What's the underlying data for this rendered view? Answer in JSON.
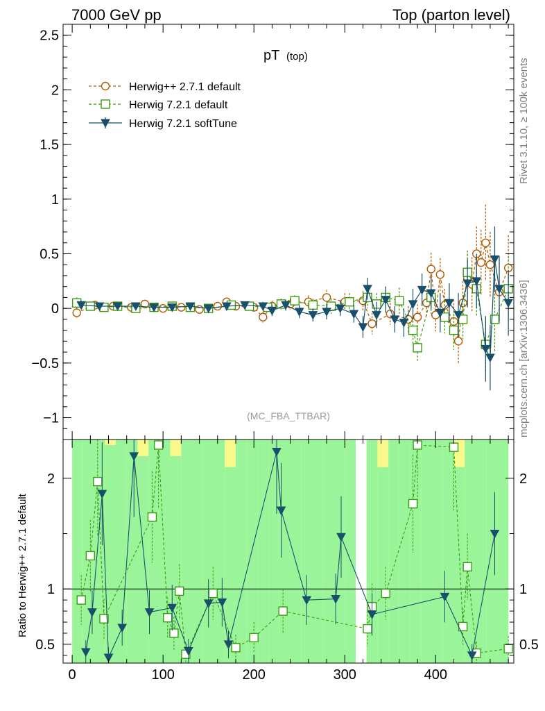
{
  "header": {
    "left": "7000 GeV pp",
    "right": "Top (parton level)"
  },
  "side_labels": {
    "rivet": "Rivet 3.1.10, ≥ 100k events",
    "mcplots": "mcplots.cern.ch [arXiv:1306.3436]"
  },
  "chart_data": {
    "type": "scatter",
    "title_main": "pT",
    "title_sub": "(top)",
    "watermark": "(MC_FBA_TTBAR)",
    "ylabel_ratio": "Ratio to Herwig++ 2.7.1 default",
    "xlim": [
      -10,
      486
    ],
    "ylim": [
      -1.2,
      2.6
    ],
    "ratio_ylim": [
      0.33,
      2.35
    ],
    "x_ticks": [
      0,
      100,
      200,
      300,
      400
    ],
    "y_ticks": [
      -1,
      -0.5,
      0,
      0.5,
      1,
      1.5,
      2,
      2.5
    ],
    "y_tick_labels": [
      "−1",
      "−0.5",
      "0",
      "0.5",
      "1",
      "1.5",
      "2",
      "2.5"
    ],
    "ratio_ticks": [
      0.5,
      1,
      2
    ],
    "ratio_tick_labels": [
      "0.5",
      "1",
      "2"
    ],
    "ratio_reference": 1,
    "legend_position": "top-left",
    "colors": {
      "herwigpp": "#b35a00",
      "herwig721": "#3d9b0f",
      "softtune": "#184f6a",
      "band_inner": "#9af59a",
      "band_outer": "#fafa8c"
    },
    "series": [
      {
        "name": "Herwig++ 2.7.1 default",
        "marker": "open-circle",
        "style": "dashed",
        "x": [
          5,
          25,
          45,
          65,
          80,
          100,
          120,
          140,
          160,
          170,
          180,
          200,
          210,
          220,
          240,
          260,
          280,
          300,
          320,
          330,
          350,
          370,
          380,
          390,
          395,
          400,
          405,
          410,
          420,
          425,
          430,
          435,
          440,
          445,
          450,
          455,
          460,
          470,
          480
        ],
        "y": [
          -0.04,
          0.03,
          0.02,
          0.01,
          0.04,
          0.0,
          0.01,
          -0.01,
          0.02,
          0.06,
          0.02,
          0.01,
          -0.08,
          0.02,
          0.04,
          0.06,
          0.1,
          0.06,
          0.07,
          -0.14,
          -0.05,
          -0.1,
          -0.08,
          0.05,
          0.36,
          -0.06,
          0.31,
          0.03,
          -0.12,
          -0.3,
          0.05,
          0.28,
          0.22,
          0.5,
          0.42,
          0.6,
          0.4,
          0.15,
          0.37
        ],
        "yerr": [
          0.05,
          0.03,
          0.03,
          0.03,
          0.03,
          0.03,
          0.03,
          0.03,
          0.03,
          0.03,
          0.03,
          0.03,
          0.05,
          0.05,
          0.05,
          0.06,
          0.07,
          0.08,
          0.09,
          0.1,
          0.1,
          0.12,
          0.12,
          0.12,
          0.15,
          0.15,
          0.15,
          0.15,
          0.2,
          0.2,
          0.2,
          0.22,
          0.25,
          0.25,
          0.3,
          0.35,
          0.3,
          0.3,
          0.3
        ]
      },
      {
        "name": "Herwig 7.2.1 default",
        "marker": "open-square",
        "style": "dashed",
        "x": [
          5,
          20,
          35,
          50,
          70,
          90,
          110,
          130,
          150,
          175,
          195,
          215,
          230,
          245,
          265,
          285,
          305,
          325,
          335,
          345,
          360,
          375,
          380,
          395,
          410,
          420,
          430,
          435,
          445,
          455,
          465,
          480
        ],
        "y": [
          0.05,
          0.02,
          0.01,
          0.02,
          0.0,
          0.01,
          0.02,
          0.01,
          0.0,
          0.03,
          0.02,
          0.01,
          0.04,
          0.07,
          0.03,
          0.02,
          0.06,
          0.1,
          0.04,
          0.1,
          0.07,
          -0.2,
          -0.36,
          0.1,
          -0.08,
          -0.2,
          -0.1,
          0.33,
          0.18,
          -0.33,
          -0.1,
          0.18
        ],
        "yerr": [
          0.05,
          0.03,
          0.03,
          0.03,
          0.03,
          0.03,
          0.03,
          0.03,
          0.03,
          0.03,
          0.03,
          0.04,
          0.05,
          0.05,
          0.06,
          0.07,
          0.08,
          0.1,
          0.1,
          0.1,
          0.12,
          0.12,
          0.12,
          0.15,
          0.15,
          0.18,
          0.18,
          0.2,
          0.25,
          0.25,
          0.3,
          0.3
        ]
      },
      {
        "name": "Herwig 7.2.1 softTune",
        "marker": "filled-triangle-down",
        "style": "solid",
        "x": [
          10,
          30,
          50,
          70,
          90,
          110,
          130,
          150,
          170,
          190,
          210,
          220,
          235,
          250,
          265,
          280,
          295,
          310,
          320,
          325,
          335,
          345,
          355,
          365,
          375,
          385,
          395,
          405,
          415,
          425,
          435,
          445,
          455,
          460,
          465,
          470,
          480
        ],
        "y": [
          0.03,
          0.02,
          0.02,
          0.02,
          0.01,
          0.01,
          0.02,
          0.0,
          0.02,
          0.03,
          0.02,
          -0.02,
          0.03,
          -0.03,
          -0.06,
          -0.03,
          0.0,
          -0.05,
          -0.17,
          0.18,
          -0.06,
          0.08,
          -0.1,
          -0.13,
          0.04,
          0.17,
          0.14,
          -0.04,
          0.05,
          -0.06,
          0.23,
          0.25,
          -0.37,
          -0.45,
          0.45,
          0.18,
          0.05
        ],
        "yerr": [
          0.04,
          0.03,
          0.03,
          0.03,
          0.03,
          0.03,
          0.03,
          0.03,
          0.03,
          0.03,
          0.04,
          0.05,
          0.05,
          0.06,
          0.06,
          0.07,
          0.07,
          0.08,
          0.1,
          0.1,
          0.12,
          0.12,
          0.12,
          0.13,
          0.14,
          0.15,
          0.15,
          0.18,
          0.18,
          0.2,
          0.22,
          0.25,
          0.3,
          0.3,
          0.3,
          0.3,
          0.3
        ]
      }
    ],
    "ratio_series": [
      {
        "name": "Herwig 7.2.1 default",
        "x": [
          10,
          20,
          28,
          35,
          88,
          95,
          105,
          112,
          118,
          125,
          155,
          180,
          200,
          232,
          325,
          330,
          345,
          375,
          380,
          420,
          430,
          435,
          445,
          480
        ],
        "y": [
          0.9,
          1.3,
          1.97,
          0.73,
          1.65,
          2.3,
          0.74,
          0.6,
          0.98,
          0.41,
          0.96,
          0.47,
          0.56,
          0.8,
          0.64,
          0.84,
          0.96,
          1.77,
          2.3,
          2.28,
          0.66,
          1.2,
          0.42,
          0.46
        ]
      },
      {
        "name": "Herwig 7.2.1 softTune",
        "x": [
          15,
          22,
          33,
          40,
          55,
          68,
          85,
          110,
          128,
          150,
          165,
          172,
          225,
          230,
          258,
          290,
          296,
          330,
          410,
          440,
          465
        ],
        "y": [
          0.43,
          0.79,
          1.86,
          0.38,
          0.65,
          2.2,
          0.79,
          0.83,
          0.44,
          0.87,
          0.88,
          0.5,
          2.24,
          1.71,
          0.9,
          0.91,
          1.47,
          0.77,
          0.93,
          0.4,
          1.5
        ]
      }
    ],
    "uncertainty_band": {
      "x_edges": [
        0,
        12,
        24,
        36,
        48,
        60,
        72,
        84,
        96,
        108,
        120,
        132,
        144,
        156,
        168,
        180,
        192,
        204,
        216,
        228,
        240,
        252,
        264,
        276,
        288,
        300,
        312,
        324,
        336,
        348,
        360,
        372,
        384,
        396,
        408,
        420,
        432,
        444,
        456,
        468,
        480
      ],
      "inner": [
        [
          0.33,
          2.35
        ],
        [
          0.33,
          2.35
        ],
        [
          0.33,
          2.35
        ],
        [
          0.33,
          2.3
        ],
        [
          0.33,
          2.35
        ],
        [
          0.33,
          2.35
        ],
        [
          0.33,
          2.2
        ],
        [
          0.33,
          2.35
        ],
        [
          0.33,
          2.35
        ],
        [
          0.33,
          2.2
        ],
        [
          0.33,
          2.35
        ],
        [
          0.33,
          2.35
        ],
        [
          0.33,
          2.35
        ],
        [
          0.33,
          2.35
        ],
        [
          0.33,
          2.1
        ],
        [
          0.33,
          2.35
        ],
        [
          0.33,
          2.35
        ],
        [
          0.33,
          2.35
        ],
        [
          0.33,
          2.35
        ],
        [
          0.33,
          2.35
        ],
        [
          0.33,
          2.35
        ],
        [
          0.33,
          2.35
        ],
        [
          0.33,
          2.35
        ],
        [
          0.33,
          2.35
        ],
        [
          0.33,
          2.35
        ],
        [
          0.33,
          2.35
        ],
        [
          0.33,
          0.33
        ],
        [
          0.33,
          2.35
        ],
        [
          0.33,
          2.1
        ],
        [
          0.33,
          2.35
        ],
        [
          0.33,
          2.35
        ],
        [
          0.33,
          2.35
        ],
        [
          0.33,
          2.35
        ],
        [
          0.33,
          2.35
        ],
        [
          0.33,
          2.35
        ],
        [
          0.33,
          2.1
        ],
        [
          0.33,
          2.35
        ],
        [
          0.33,
          2.35
        ],
        [
          0.33,
          2.35
        ],
        [
          0.33,
          2.35
        ]
      ],
      "outer": [
        [
          0.33,
          2.35
        ],
        [
          0.33,
          2.35
        ],
        [
          0.33,
          2.35
        ],
        [
          0.33,
          2.35
        ],
        [
          0.33,
          2.35
        ],
        [
          0.33,
          2.35
        ],
        [
          0.33,
          2.35
        ],
        [
          0.33,
          2.35
        ],
        [
          0.33,
          2.35
        ],
        [
          0.33,
          2.35
        ],
        [
          0.33,
          2.35
        ],
        [
          0.33,
          2.35
        ],
        [
          0.33,
          2.35
        ],
        [
          0.33,
          2.35
        ],
        [
          0.33,
          2.35
        ],
        [
          0.33,
          2.35
        ],
        [
          0.33,
          2.35
        ],
        [
          0.33,
          2.35
        ],
        [
          0.33,
          2.35
        ],
        [
          0.33,
          2.35
        ],
        [
          0.33,
          2.35
        ],
        [
          0.33,
          2.35
        ],
        [
          0.33,
          2.35
        ],
        [
          0.33,
          2.35
        ],
        [
          0.33,
          2.35
        ],
        [
          0.33,
          2.35
        ],
        [
          0.33,
          0.33
        ],
        [
          0.33,
          2.35
        ],
        [
          0.33,
          2.35
        ],
        [
          0.33,
          2.35
        ],
        [
          0.33,
          2.35
        ],
        [
          0.33,
          2.35
        ],
        [
          0.33,
          2.35
        ],
        [
          0.33,
          2.35
        ],
        [
          0.33,
          2.35
        ],
        [
          0.33,
          2.35
        ],
        [
          0.33,
          2.35
        ],
        [
          0.33,
          2.35
        ],
        [
          0.33,
          2.35
        ],
        [
          0.33,
          2.35
        ]
      ]
    }
  }
}
